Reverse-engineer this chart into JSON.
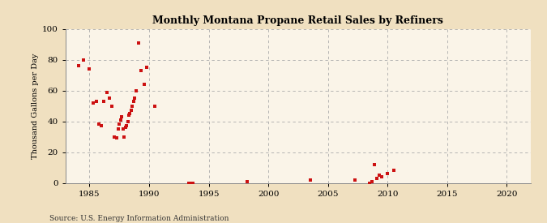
{
  "title": "Monthly Montana Propane Retail Sales by Refiners",
  "ylabel": "Thousand Gallons per Day",
  "source": "Source: U.S. Energy Information Administration",
  "background_color": "#f0e0c0",
  "plot_background_color": "#faf4e8",
  "marker_color": "#cc1111",
  "xlim": [
    1983,
    2022
  ],
  "ylim": [
    0,
    100
  ],
  "xticks": [
    1985,
    1990,
    1995,
    2000,
    2005,
    2010,
    2015,
    2020
  ],
  "yticks": [
    0,
    20,
    40,
    60,
    80,
    100
  ],
  "x_data": [
    1984.1,
    1984.5,
    1985.0,
    1985.3,
    1985.6,
    1985.8,
    1986.0,
    1986.2,
    1986.5,
    1986.7,
    1986.9,
    1987.1,
    1987.3,
    1987.4,
    1987.5,
    1987.6,
    1987.7,
    1987.8,
    1987.9,
    1988.0,
    1988.1,
    1988.2,
    1988.3,
    1988.4,
    1988.5,
    1988.6,
    1988.7,
    1988.8,
    1988.9,
    1989.1,
    1989.3,
    1989.6,
    1989.8,
    1990.5,
    1993.3,
    1993.5,
    1993.7,
    1998.2,
    2003.5,
    2007.3,
    2008.5,
    2008.7,
    2008.9,
    2009.1,
    2009.3,
    2009.5,
    2010.0,
    2010.5
  ],
  "y_data": [
    76,
    80,
    74,
    52,
    53,
    38,
    37,
    53,
    59,
    55,
    50,
    30,
    29,
    35,
    38,
    41,
    43,
    35,
    30,
    36,
    37,
    40,
    44,
    45,
    47,
    50,
    53,
    55,
    60,
    91,
    73,
    64,
    75,
    50,
    0,
    0,
    0,
    1,
    2,
    2,
    0,
    1,
    12,
    3,
    5,
    4,
    6,
    8
  ]
}
